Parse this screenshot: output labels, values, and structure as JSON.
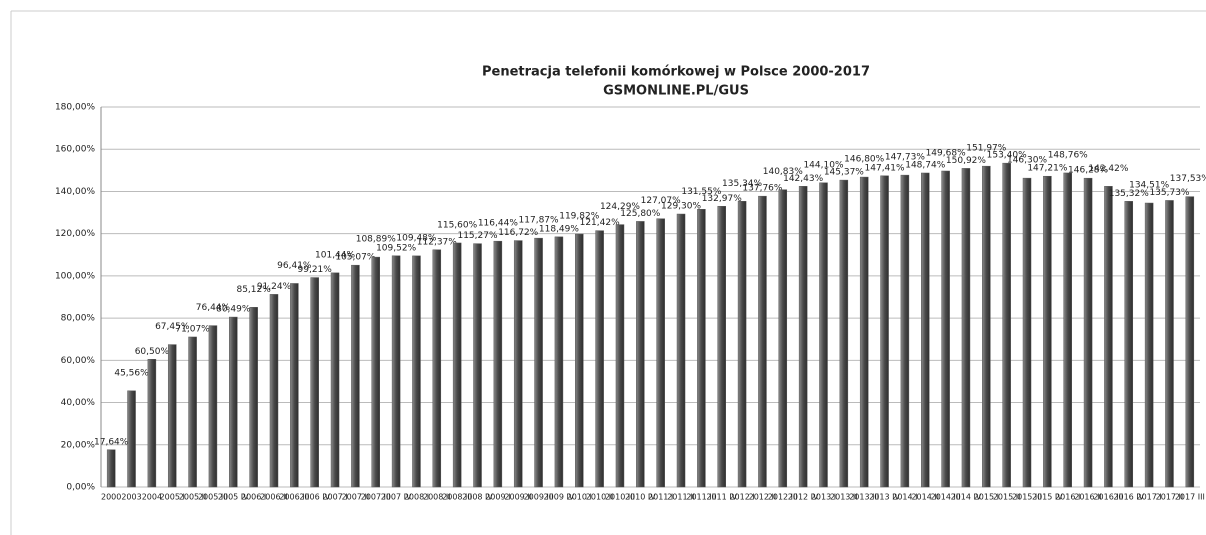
{
  "chart_data": {
    "type": "bar",
    "title": "Penetracja telefonii komórkowej w Polsce 2000-2017",
    "subtitle": "GSMONLINE.PL/GUS",
    "categories": [
      "2000",
      "2003",
      "2004",
      "2005 I",
      "2005 II",
      "2005 III",
      "2005 IV",
      "2006 I",
      "2006 II",
      "2006 III",
      "2006 IV",
      "2007 I",
      "2007 II",
      "2007 III",
      "2007 IV",
      "2008 I",
      "2008 II",
      "2008 III",
      "2008 IV",
      "2009 I",
      "2009 II",
      "2009 III",
      "2009 IV",
      "2010 I",
      "2010 II",
      "2010 III",
      "2010 IV",
      "2011 I",
      "2011 II",
      "2011 III",
      "2011 IV",
      "2012 I",
      "2012 II",
      "2012 III",
      "2012 IV",
      "2013 I",
      "2013 II",
      "2013 III",
      "2013 IV",
      "2014 I",
      "2014 II",
      "2014 III",
      "2014 IV",
      "2015 I",
      "2015 II",
      "2015 III",
      "2015 IV",
      "2016 I",
      "2016 II",
      "2016 III",
      "2016 IV",
      "2017 I",
      "2017 II",
      "2017 III"
    ],
    "values": [
      17.64,
      45.56,
      60.5,
      67.45,
      71.07,
      76.44,
      80.49,
      85.12,
      91.24,
      96.41,
      99.21,
      101.44,
      105.07,
      108.89,
      109.52,
      109.48,
      112.37,
      115.6,
      115.27,
      116.44,
      116.72,
      117.87,
      118.49,
      119.82,
      121.42,
      124.29,
      125.8,
      127.07,
      129.3,
      131.55,
      132.97,
      135.34,
      137.76,
      140.83,
      142.43,
      144.1,
      145.37,
      146.8,
      147.41,
      147.73,
      148.74,
      149.68,
      150.92,
      151.97,
      153.4,
      146.3,
      147.21,
      148.76,
      146.28,
      142.42,
      135.32,
      134.51,
      135.73,
      137.53
    ],
    "value_labels": [
      "17,64%",
      "45,56%",
      "60,50%",
      "67,45%",
      "71,07%",
      "76,44%",
      "80,49%",
      "85,12%",
      "91,24%",
      "96,41%",
      "99,21%",
      "101,44%",
      "105,07%",
      "108,89%",
      "109,52%",
      "109,48%",
      "112,37%",
      "115,60%",
      "115,27%",
      "116,44%",
      "116,72%",
      "117,87%",
      "118,49%",
      "119,82%",
      "121,42%",
      "124,29%",
      "125,80%",
      "127,07%",
      "129,30%",
      "131,55%",
      "132,97%",
      "135,34%",
      "137,76%",
      "140,83%",
      "142,43%",
      "144,10%",
      "145,37%",
      "146,80%",
      "147,41%",
      "147,73%",
      "148,74%",
      "149,68%",
      "150,92%",
      "151,97%",
      "153,40%",
      "146,30%",
      "147,21%",
      "148,76%",
      "146,28%",
      "142,42%",
      "135,32%",
      "134,51%",
      "135,73%",
      "137,53%"
    ],
    "color": "#555555",
    "ylim": [
      0,
      180
    ],
    "yticks": [
      {
        "value": 0,
        "label": "0,00%"
      },
      {
        "value": 20,
        "label": "20,00%"
      },
      {
        "value": 40,
        "label": "40,00%"
      },
      {
        "value": 60,
        "label": "60,00%"
      },
      {
        "value": 80,
        "label": "80,00%"
      },
      {
        "value": 100,
        "label": "100,00%"
      },
      {
        "value": 120,
        "label": "120,00%"
      },
      {
        "value": 140,
        "label": "140,00%"
      },
      {
        "value": 160,
        "label": "160,00%"
      },
      {
        "value": 180,
        "label": "180,00%"
      }
    ],
    "grid": true
  }
}
